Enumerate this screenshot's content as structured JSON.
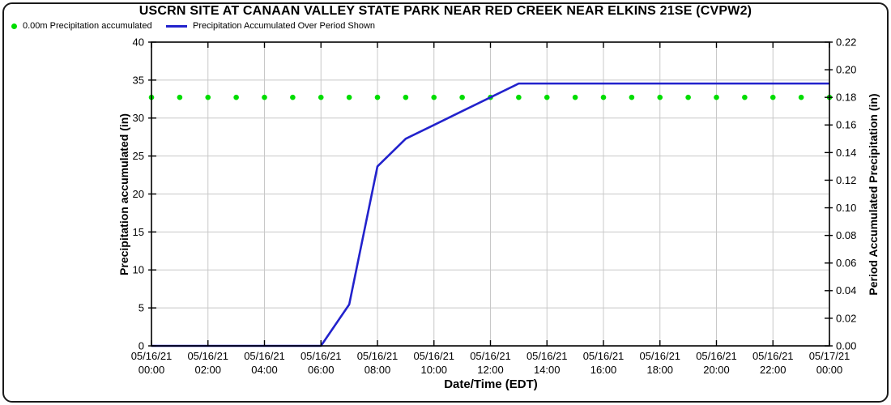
{
  "chart_data": {
    "type": "line",
    "title": "USCRN SITE AT CANAAN VALLEY STATE PARK NEAR RED CREEK NEAR ELKINS 21SE (CVPW2)",
    "colors": {
      "line_blue": "#2222cc",
      "dot_green": "#00dd00",
      "grid": "#c8c8c8",
      "axis": "#000000"
    },
    "x_axis": {
      "title": "Date/Time (EDT)",
      "hours_range": [
        0,
        24
      ],
      "grid": true,
      "tick_labels": [
        [
          "05/16/21",
          "00:00"
        ],
        [
          "05/16/21",
          "02:00"
        ],
        [
          "05/16/21",
          "04:00"
        ],
        [
          "05/16/21",
          "06:00"
        ],
        [
          "05/16/21",
          "08:00"
        ],
        [
          "05/16/21",
          "10:00"
        ],
        [
          "05/16/21",
          "12:00"
        ],
        [
          "05/16/21",
          "14:00"
        ],
        [
          "05/16/21",
          "16:00"
        ],
        [
          "05/16/21",
          "18:00"
        ],
        [
          "05/16/21",
          "20:00"
        ],
        [
          "05/16/21",
          "22:00"
        ],
        [
          "05/17/21",
          "00:00"
        ]
      ]
    },
    "left_axis": {
      "title": "Precipitation accumulated (in)",
      "min": 0,
      "max": 40,
      "tick_step": 5,
      "tick_labels": [
        "0",
        "5",
        "10",
        "15",
        "20",
        "25",
        "30",
        "35",
        "40"
      ]
    },
    "right_axis": {
      "title": "Period Accumulated Precipitation (in)",
      "min": 0,
      "max": 0.22,
      "tick_step": 0.02,
      "tick_labels": [
        "0.00",
        "0.02",
        "0.04",
        "0.06",
        "0.08",
        "0.10",
        "0.12",
        "0.14",
        "0.16",
        "0.18",
        "0.20",
        "0.22"
      ]
    },
    "series": [
      {
        "name": "Precipitation Accumulated Over Period Shown",
        "type": "line",
        "axis": "right",
        "color": "#2222cc",
        "x_hours": [
          0,
          1,
          2,
          3,
          4,
          5,
          6,
          7,
          8,
          9,
          10,
          11,
          12,
          13,
          14,
          15,
          16,
          17,
          18,
          19,
          20,
          21,
          22,
          23,
          24
        ],
        "values": [
          0,
          0,
          0,
          0,
          0,
          0,
          0,
          0.03,
          0.13,
          0.15,
          0.16,
          0.17,
          0.18,
          0.19,
          0.19,
          0.19,
          0.19,
          0.19,
          0.19,
          0.19,
          0.19,
          0.19,
          0.19,
          0.19,
          0.19
        ]
      },
      {
        "name": "0.00m Precipitation accumulated",
        "type": "scatter",
        "axis": "right",
        "color": "#00dd00",
        "x_hours": [
          0,
          1,
          2,
          3,
          4,
          5,
          6,
          7,
          8,
          9,
          10,
          11,
          12,
          13,
          14,
          15,
          16,
          17,
          18,
          19,
          20,
          21,
          22,
          23,
          24
        ],
        "values": [
          0.18,
          0.18,
          0.18,
          0.18,
          0.18,
          0.18,
          0.18,
          0.18,
          0.18,
          0.18,
          0.18,
          0.18,
          0.18,
          0.18,
          0.18,
          0.18,
          0.18,
          0.18,
          0.18,
          0.18,
          0.18,
          0.18,
          0.18,
          0.18,
          0.18
        ]
      }
    ]
  },
  "legend": {
    "items": [
      {
        "marker": "green-dot",
        "label": "0.00m Precipitation accumulated"
      },
      {
        "marker": "blue-line",
        "label": "Precipitation Accumulated Over Period Shown"
      }
    ]
  }
}
